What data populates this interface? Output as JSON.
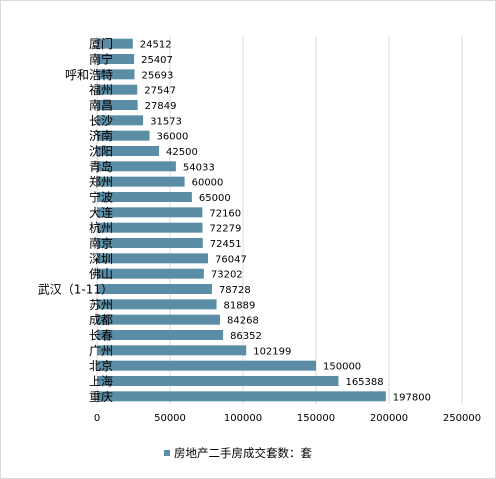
{
  "chart_data": {
    "type": "bar",
    "orientation": "horizontal",
    "categories": [
      "厦门",
      "南宁",
      "呼和浩特",
      "福州",
      "南昌",
      "长沙",
      "济南",
      "沈阳",
      "青岛",
      "郑州",
      "宁波",
      "大连",
      "杭州",
      "南京",
      "深圳",
      "佛山",
      "武汉（1-11）",
      "苏州",
      "成都",
      "长春",
      "广州",
      "北京",
      "上海",
      "重庆"
    ],
    "values": [
      24512,
      25407,
      25693,
      27547,
      27849,
      31573,
      36000,
      42500,
      54033,
      60000,
      65000,
      72160,
      72279,
      72451,
      76047,
      73202,
      78728,
      81889,
      84268,
      86352,
      102199,
      150000,
      165388,
      197800
    ],
    "value_labels": [
      "24512",
      "25407",
      "25693",
      "27547",
      "27849",
      "31573",
      "36000",
      "42500",
      "54033",
      "60000",
      "65000",
      "72160",
      "72279",
      "72451",
      "76047",
      "73202",
      "78728",
      "81889",
      "84268",
      "86352",
      "102199",
      "150000",
      "165388",
      "197800"
    ],
    "xlim": [
      0,
      250000
    ],
    "xticks": [
      0,
      50000,
      100000,
      150000,
      200000,
      250000
    ],
    "xtick_labels": [
      "0",
      "50000",
      "100000",
      "150000",
      "200000",
      "250000"
    ],
    "series": [
      {
        "name": "房地产二手房成交套数：套"
      }
    ],
    "bar_color": "#5b8ea6",
    "grid": true,
    "gridline_color": "#d9d9d9",
    "legend_position": "bottom"
  }
}
